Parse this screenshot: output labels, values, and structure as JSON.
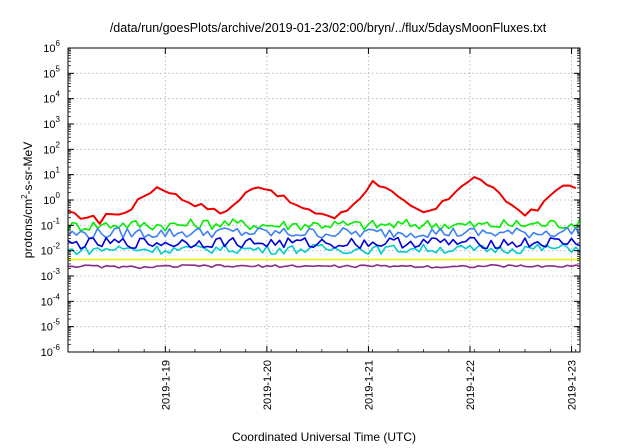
{
  "chart_data": {
    "type": "line",
    "title": "/data/run/goesPlots/archive/2019-01-23/02:00/bryn/../flux/5daysMoonFluxes.txt",
    "xlabel": "Coordinated Universal Time (UTC)",
    "ylabel": {
      "pre": "protons/cm",
      "sup": "2",
      "post": "-s-sr-MeV"
    },
    "xlim": [
      "2019-01-18 01:00",
      "2019-01-23 02:00"
    ],
    "ylim": [
      1e-06,
      1000000.0
    ],
    "yscale": "log",
    "grid": true,
    "legend": "none",
    "x_ticks": [
      "2019-1-19",
      "2019-1-20",
      "2019-1-21",
      "2019-1-22",
      "2019-1-23"
    ],
    "y_ticks": [
      {
        "base": "10",
        "exp": "6"
      },
      {
        "base": "10",
        "exp": "5"
      },
      {
        "base": "10",
        "exp": "4"
      },
      {
        "base": "10",
        "exp": "3"
      },
      {
        "base": "10",
        "exp": "2"
      },
      {
        "base": "10",
        "exp": "1"
      },
      {
        "base": "10",
        "exp": "0"
      },
      {
        "base": "10",
        "exp": "-1"
      },
      {
        "base": "10",
        "exp": "-2"
      },
      {
        "base": "10",
        "exp": "-3"
      },
      {
        "base": "10",
        "exp": "-4"
      },
      {
        "base": "10",
        "exp": "-5"
      },
      {
        "base": "10",
        "exp": "-6"
      }
    ],
    "series": [
      {
        "color": "#ee0000",
        "x": [
          "2019-01-18 01:00",
          "2019-01-18 04:00",
          "2019-01-18 07:00",
          "2019-01-18 09:00",
          "2019-01-18 10:00",
          "2019-01-18 13:00",
          "2019-01-18 16:00",
          "2019-01-18 19:00",
          "2019-01-18 22:00",
          "2019-01-19 01:00",
          "2019-01-19 04:00",
          "2019-01-19 07:00",
          "2019-01-19 10:00",
          "2019-01-19 13:00",
          "2019-01-19 16:00",
          "2019-01-19 19:00",
          "2019-01-19 22:00",
          "2019-01-20 01:00",
          "2019-01-20 04:00",
          "2019-01-20 07:00",
          "2019-01-20 10:00",
          "2019-01-20 13:00",
          "2019-01-20 16:00",
          "2019-01-20 19:00",
          "2019-01-20 22:00",
          "2019-01-21 01:00",
          "2019-01-21 04:00",
          "2019-01-21 07:00",
          "2019-01-21 10:00",
          "2019-01-21 13:00",
          "2019-01-21 16:00",
          "2019-01-21 19:00",
          "2019-01-21 22:00",
          "2019-01-22 01:00",
          "2019-01-22 04:00",
          "2019-01-22 07:00",
          "2019-01-22 10:00",
          "2019-01-22 13:00",
          "2019-01-22 16:00",
          "2019-01-22 19:00",
          "2019-01-22 22:00",
          "2019-01-23 01:00",
          "2019-01-23 02:00"
        ],
        "y": [
          0.3,
          0.22,
          0.2,
          0.12,
          0.3,
          0.25,
          0.5,
          1.5,
          3.2,
          2.2,
          1.1,
          0.7,
          0.5,
          0.3,
          0.6,
          1.8,
          3.8,
          2.5,
          1.2,
          0.6,
          0.35,
          0.3,
          0.2,
          0.4,
          1.3,
          5.2,
          3.5,
          1.2,
          0.5,
          0.3,
          0.45,
          1.2,
          4,
          7.5,
          4.5,
          1.5,
          0.6,
          0.3,
          0.4,
          1.5,
          4.5,
          2.5,
          1.0
        ]
      },
      {
        "color": "#00ee00",
        "x": [
          "2019-01-18 01:00",
          "2019-01-18 13:00",
          "2019-01-19 01:00",
          "2019-01-19 13:00",
          "2019-01-20 01:00",
          "2019-01-20 13:00",
          "2019-01-21 01:00",
          "2019-01-21 13:00",
          "2019-01-22 01:00",
          "2019-01-22 13:00",
          "2019-01-23 02:00"
        ],
        "y": [
          0.09,
          0.11,
          0.1,
          0.12,
          0.1,
          0.11,
          0.1,
          0.11,
          0.1,
          0.11,
          0.12
        ]
      },
      {
        "color": "#3b82f6",
        "x": [
          "2019-01-18 01:00",
          "2019-01-18 13:00",
          "2019-01-19 01:00",
          "2019-01-19 13:00",
          "2019-01-20 01:00",
          "2019-01-20 13:00",
          "2019-01-21 01:00",
          "2019-01-21 13:00",
          "2019-01-22 01:00",
          "2019-01-22 13:00",
          "2019-01-23 02:00"
        ],
        "y": [
          0.045,
          0.05,
          0.05,
          0.055,
          0.05,
          0.05,
          0.05,
          0.055,
          0.05,
          0.05,
          0.06
        ]
      },
      {
        "color": "#00cccc",
        "x": [
          "2019-01-18 01:00",
          "2019-01-18 13:00",
          "2019-01-19 01:00",
          "2019-01-19 13:00",
          "2019-01-20 01:00",
          "2019-01-20 13:00",
          "2019-01-21 01:00",
          "2019-01-21 13:00",
          "2019-01-22 01:00",
          "2019-01-22 13:00",
          "2019-01-23 02:00"
        ],
        "y": [
          0.01,
          0.012,
          0.011,
          0.012,
          0.011,
          0.012,
          0.011,
          0.012,
          0.011,
          0.012,
          0.013
        ]
      },
      {
        "color": "#0000dd",
        "x": [
          "2019-01-18 01:00",
          "2019-01-18 13:00",
          "2019-01-19 01:00",
          "2019-01-19 13:00",
          "2019-01-20 01:00",
          "2019-01-20 13:00",
          "2019-01-21 01:00",
          "2019-01-21 13:00",
          "2019-01-22 01:00",
          "2019-01-22 13:00",
          "2019-01-23 02:00"
        ],
        "y": [
          0.018,
          0.02,
          0.02,
          0.022,
          0.02,
          0.02,
          0.02,
          0.022,
          0.02,
          0.02,
          0.022
        ]
      },
      {
        "color": "#eeee00",
        "x": [
          "2019-01-18 01:00",
          "2019-01-23 02:00"
        ],
        "y": [
          0.0045,
          0.0045
        ]
      },
      {
        "color": "#8b2a8b",
        "x": [
          "2019-01-18 01:00",
          "2019-01-18 12:00",
          "2019-01-18 18:00",
          "2019-01-19 06:00",
          "2019-01-19 18:00",
          "2019-01-20 06:00",
          "2019-01-20 18:00",
          "2019-01-21 06:00",
          "2019-01-21 18:00",
          "2019-01-22 06:00",
          "2019-01-22 18:00",
          "2019-01-23 02:00"
        ],
        "y": [
          0.0025,
          0.0023,
          0.0022,
          0.0025,
          0.0024,
          0.0025,
          0.0024,
          0.0025,
          0.0023,
          0.0025,
          0.0024,
          0.0025
        ]
      }
    ]
  }
}
